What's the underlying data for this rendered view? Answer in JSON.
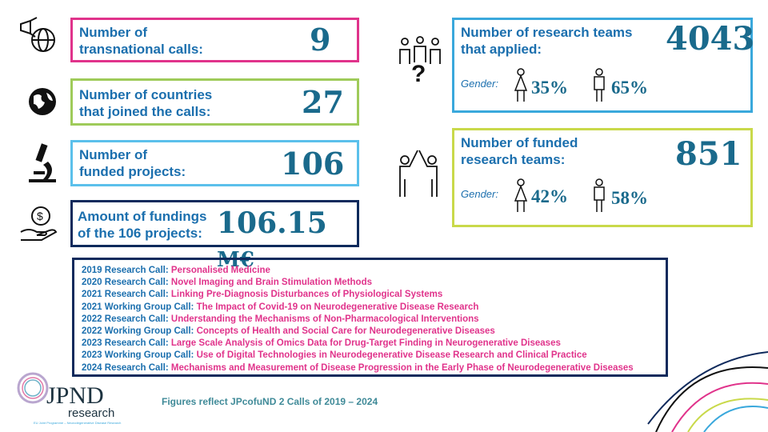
{
  "stats": [
    {
      "label_1": "Number of",
      "label_2": "transnational calls:",
      "value": "9",
      "icon": "megaphone-globe-icon",
      "color": "#e0338b"
    },
    {
      "label_1": "Number of countries",
      "label_2": "that joined the calls:",
      "value": "27",
      "icon": "globe-icon",
      "color": "#9fcb5a"
    },
    {
      "label_1": "Number of",
      "label_2": "funded projects:",
      "value": "106",
      "icon": "microscope-icon",
      "color": "#5bc0eb"
    },
    {
      "label_1": "Amount of fundings",
      "label_2": "of the 106 projects:",
      "value": "106.15",
      "unit": "M€",
      "icon": "money-hand-icon",
      "color": "#0f2a5c"
    }
  ],
  "teams": [
    {
      "label_1": "Number of research teams",
      "label_2": "that applied:",
      "value": "4043",
      "gender_label": "Gender:",
      "female": "35%",
      "male": "65%",
      "color": "#3aa8dc"
    },
    {
      "label_1": "Number of funded",
      "label_2": "research teams:",
      "value": "851",
      "gender_label": "Gender:",
      "female": "42%",
      "male": "58%",
      "color": "#c9d94a"
    }
  ],
  "calls": [
    {
      "k": "2019 Research Call:",
      "v": "Personalised Medicine"
    },
    {
      "k": "2020 Research Call:",
      "v": "Novel Imaging and Brain Stimulation Methods"
    },
    {
      "k": "2021 Research Call:",
      "v": "Linking Pre-Diagnosis Disturbances of Physiological Systems"
    },
    {
      "k": "2021 Working Group Call:",
      "v": "The Impact of Covid-19 on Neurodegenerative Disease Research"
    },
    {
      "k": "2022 Research Call:",
      "v": "Understanding the Mechanisms of Non-Pharmacological Interventions"
    },
    {
      "k": "2022 Working Group Call:",
      "v": "Concepts of Health and Social Care for Neurodegenerative Diseases"
    },
    {
      "k": "2023 Research Call:",
      "v": "Large Scale Analysis of Omics Data for Drug-Target Finding in Neurogenerative Diseases"
    },
    {
      "k": "2023 Working Group Call:",
      "v": "Use of Digital Technologies in Neurodegenerative Disease Research and Clinical Practice"
    },
    {
      "k": "2024 Research Call:",
      "v": "Mechanisms and Measurement of Disease Progression in the Early Phase of Neurodegenerative Diseases"
    }
  ],
  "logo": {
    "name": "JPND",
    "sub": "research",
    "tagline": "EU Joint Programme – Neurodegenerative Disease Research"
  },
  "footer": "Figures reflect JPcofuND 2 Calls of 2019 – 2024"
}
